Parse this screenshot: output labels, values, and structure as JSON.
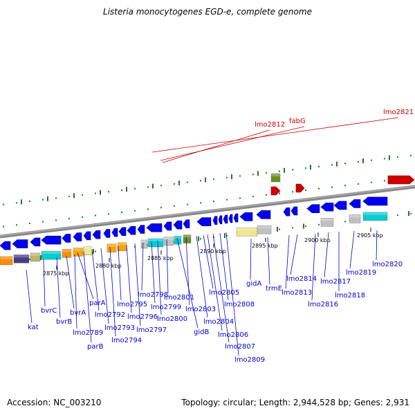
{
  "title": "Listeria monocytogenes EGD-e, complete genome",
  "accession": "Accession: NC_003210",
  "topology": "Topology: circular; Length: 2,944,528 bp; Genes: 2,931",
  "colors": {
    "forward_gene": "#cc0000",
    "forward_gene_dark": "#990000",
    "reverse_gene": "#0000ee",
    "reverse_gene_dark": "#0000aa",
    "backbone": "#888888",
    "green_tick": "#227722",
    "label_blue": "#0000cc",
    "label_red": "#cc0000"
  },
  "kbp_ticks": [
    "2875 kbp",
    "2880 kbp",
    "2885 kbp",
    "2890 kbp",
    "2895 kbp",
    "2900 kbp",
    "2905 kbp"
  ],
  "forward_labels": [
    "lmo2812",
    "fabG",
    "lmo2821"
  ],
  "reverse_labels": [
    "kat",
    "bvrC",
    "bvrB",
    "bvrA",
    "lmo2789",
    "parA",
    "parB",
    "lmo2792",
    "lmo2793",
    "lmo2794",
    "lmo2795",
    "lmo2796",
    "lmo2797",
    "lmo2798",
    "lmo2799",
    "lmo2800",
    "lmo2801",
    "gidB",
    "lmo2803",
    "lmo2804",
    "lmo2805",
    "lmo2806",
    "lmo2807",
    "lmo2808",
    "lmo2809",
    "gidA",
    "trmE",
    "lmo2813",
    "lmo2814",
    "lmo2816",
    "lmo2817",
    "lmo2818",
    "lmo2819",
    "lmo2820"
  ],
  "category_colors": [
    "#ff8c00",
    "#483d8b",
    "#bdb76b",
    "#00ced1",
    "#f0e68c",
    "#c0c0c0",
    "#6b8e23",
    "#ffa500"
  ]
}
